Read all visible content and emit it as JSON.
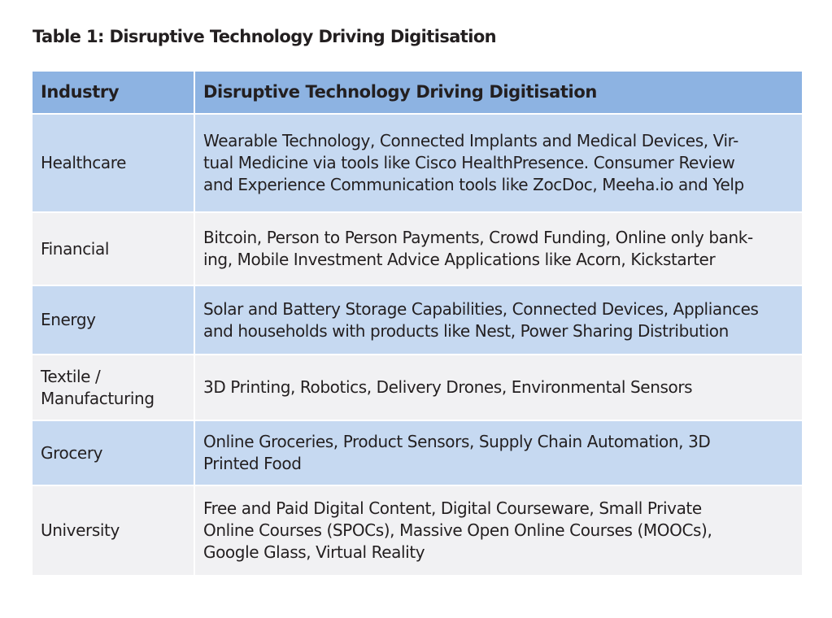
{
  "title": "Table 1: Disruptive Technology Driving Digitisation",
  "headers": [
    "Industry",
    "Disruptive Technology Driving Digitisation"
  ],
  "rows": [
    {
      "industry": [
        "Healthcare"
      ],
      "tech": [
        "Wearable Technology, Connected Implants and Medical Devices, Vir-",
        "tual Medicine via tools like Cisco HealthPresence. Consumer Review",
        "and Experience Communication tools like ZocDoc, Meeha.io and Yelp"
      ]
    },
    {
      "industry": [
        "Financial"
      ],
      "tech": [
        "Bitcoin, Person to Person Payments, Crowd Funding, Online only bank-",
        "ing, Mobile Investment Advice Applications like Acorn, Kickstarter"
      ]
    },
    {
      "industry": [
        "Energy"
      ],
      "tech": [
        "Solar and Battery Storage Capabilities, Connected Devices, Appliances",
        "and households with products like Nest, Power Sharing Distribution"
      ]
    },
    {
      "industry": [
        "Textile /",
        "Manufacturing"
      ],
      "tech": [
        "3D Printing, Robotics, Delivery Drones, Environmental Sensors"
      ]
    },
    {
      "industry": [
        "Grocery"
      ],
      "tech": [
        "Online Groceries, Product Sensors, Supply Chain Automation, 3D",
        "Printed Food"
      ]
    },
    {
      "industry": [
        "University"
      ],
      "tech": [
        "Free and Paid Digital Content, Digital Courseware, Small Private",
        "Online Courses (SPOCs), Massive Open Online Courses (MOOCs),",
        "Google Glass, Virtual Reality"
      ]
    }
  ]
}
